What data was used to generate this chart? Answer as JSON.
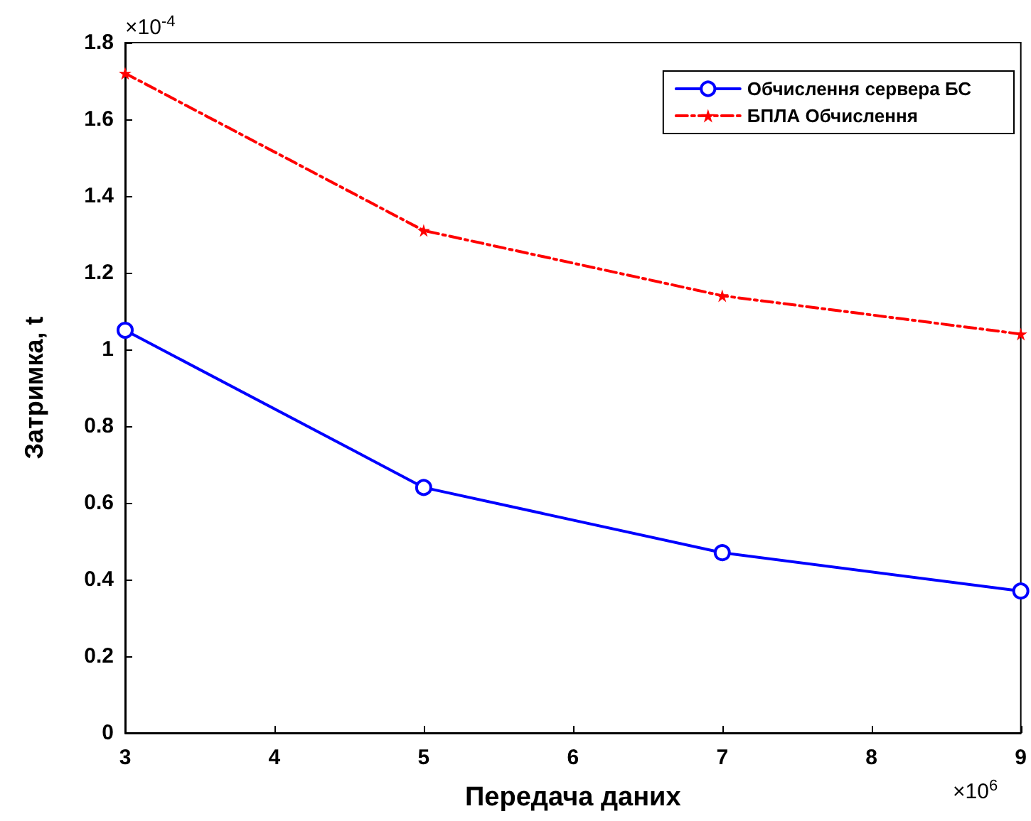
{
  "chart_data": {
    "type": "line",
    "xlabel": "Передача даних",
    "ylabel": "Затримка, t",
    "x": [
      3,
      5,
      7,
      9
    ],
    "series": [
      {
        "name": "Обчислення сервера БС",
        "color": "#0000ff",
        "values": [
          1.05,
          0.64,
          0.47,
          0.37
        ],
        "marker": "circle",
        "line_style": "solid"
      },
      {
        "name": "БПЛА Обчислення",
        "color": "#ff0000",
        "values": [
          1.72,
          1.31,
          1.14,
          1.04
        ],
        "marker": "star",
        "line_style": "dashed"
      }
    ],
    "xlim": [
      3,
      9
    ],
    "xticks": [
      3,
      4,
      5,
      6,
      7,
      8,
      9
    ],
    "ylim": [
      0,
      1.8
    ],
    "yticks": [
      0,
      0.2,
      0.4,
      0.6,
      0.8,
      1,
      1.2,
      1.4,
      1.6,
      1.8
    ],
    "grid": false,
    "legend": "top right",
    "annotations": [
      "×10$^{-4}$",
      "×10$^{6}$"
    ]
  }
}
